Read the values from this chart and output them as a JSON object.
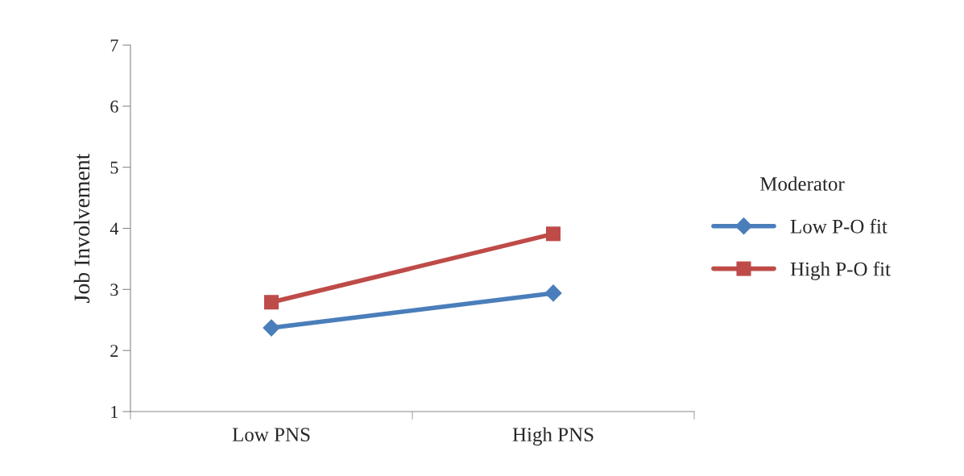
{
  "chart_data": {
    "type": "line",
    "ylabel": "Job Involvement",
    "legend_title": "Moderator",
    "categories": [
      "Low PNS",
      "High PNS"
    ],
    "series": [
      {
        "name": "Low P-O fit",
        "color": "#4a7ebb",
        "values": [
          2.37,
          2.94
        ],
        "marker": "diamond"
      },
      {
        "name": "High P-O fit",
        "color": "#be4b48",
        "values": [
          2.79,
          3.91
        ],
        "marker": "square"
      }
    ],
    "ylim": [
      1,
      7
    ],
    "yticks": [
      1,
      2,
      3,
      4,
      5,
      6,
      7
    ],
    "grid": false,
    "legend": "right",
    "line_style": "solid"
  }
}
